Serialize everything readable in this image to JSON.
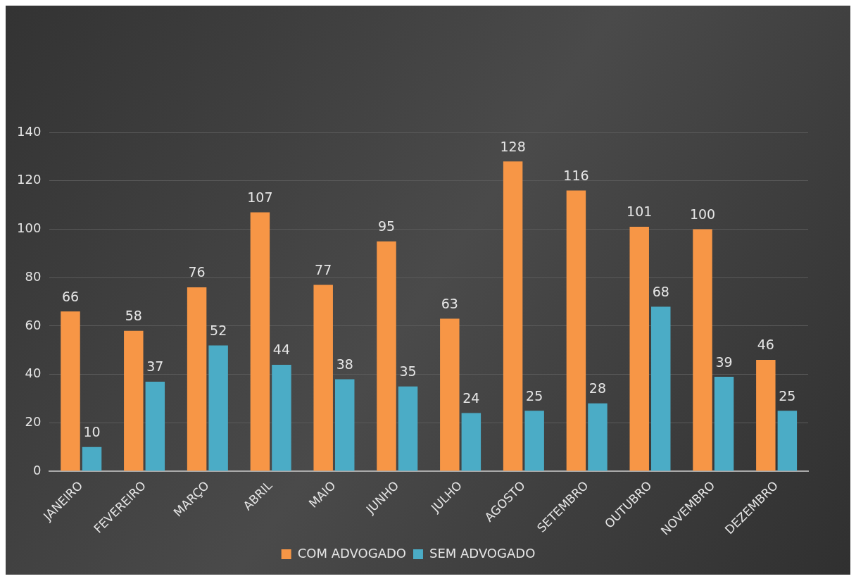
{
  "chart_data": {
    "type": "bar",
    "categories": [
      "JANEIRO",
      "FEVEREIRO",
      "MARÇO",
      "ABRIL",
      "MAIO",
      "JUNHO",
      "JULHO",
      "AGOSTO",
      "SETEMBRO",
      "OUTUBRO",
      "NOVEMBRO",
      "DEZEMBRO"
    ],
    "series": [
      {
        "name": "COM ADVOGADO",
        "color": "#f79646",
        "values": [
          66,
          58,
          76,
          107,
          77,
          95,
          63,
          128,
          116,
          101,
          100,
          46
        ]
      },
      {
        "name": "SEM ADVOGADO",
        "color": "#4bacc6",
        "values": [
          10,
          37,
          52,
          44,
          38,
          35,
          24,
          25,
          28,
          68,
          39,
          25
        ]
      }
    ],
    "ylim": [
      0,
      140
    ],
    "yticks": [
      0,
      20,
      40,
      60,
      80,
      100,
      120,
      140
    ],
    "grid": "y",
    "legend": "bottom",
    "data_labels": true
  }
}
